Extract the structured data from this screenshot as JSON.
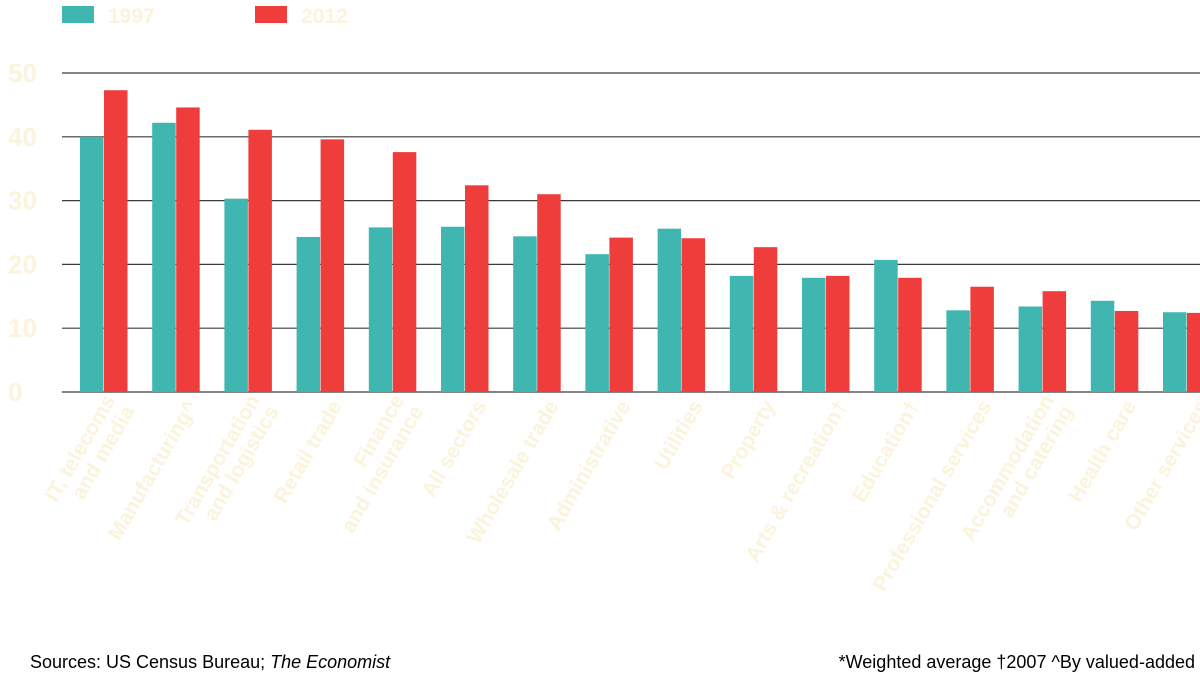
{
  "chart_data": {
    "type": "bar",
    "categories": [
      "IT, telecoms and media",
      "Manufacturing^",
      "Transportation and logistics",
      "Retail trade",
      "Finance and insurance",
      "All sectors",
      "Wholesale trade",
      "Administrative",
      "Utilities",
      "Property",
      "Arts & recreation†",
      "Education†",
      "Professional services",
      "Accommodation and catering",
      "Health care",
      "Other services"
    ],
    "series": [
      {
        "name": "1997",
        "color": "#3fb6b0",
        "values": [
          40.0,
          42.2,
          30.3,
          24.3,
          25.8,
          25.9,
          24.4,
          21.6,
          25.6,
          18.2,
          17.9,
          20.7,
          12.8,
          13.4,
          14.3,
          12.5
        ]
      },
      {
        "name": "2012",
        "color": "#ef3d3b",
        "values": [
          47.3,
          44.6,
          41.1,
          39.6,
          37.6,
          32.4,
          31.0,
          24.2,
          24.1,
          22.7,
          18.2,
          17.9,
          16.5,
          15.8,
          12.7,
          12.4
        ]
      }
    ],
    "ylim": [
      0,
      50
    ],
    "yticks": [
      0,
      10,
      20,
      30,
      40,
      50
    ],
    "grid": true,
    "legend": "top-left",
    "label_color": "#fcf3dc",
    "grid_color": "#3a3a3a",
    "sources": "Sources: US Census Bureau; ",
    "sources_italic": "The Economist",
    "footnote": "*Weighted average   †2007   ^By valued-added"
  }
}
